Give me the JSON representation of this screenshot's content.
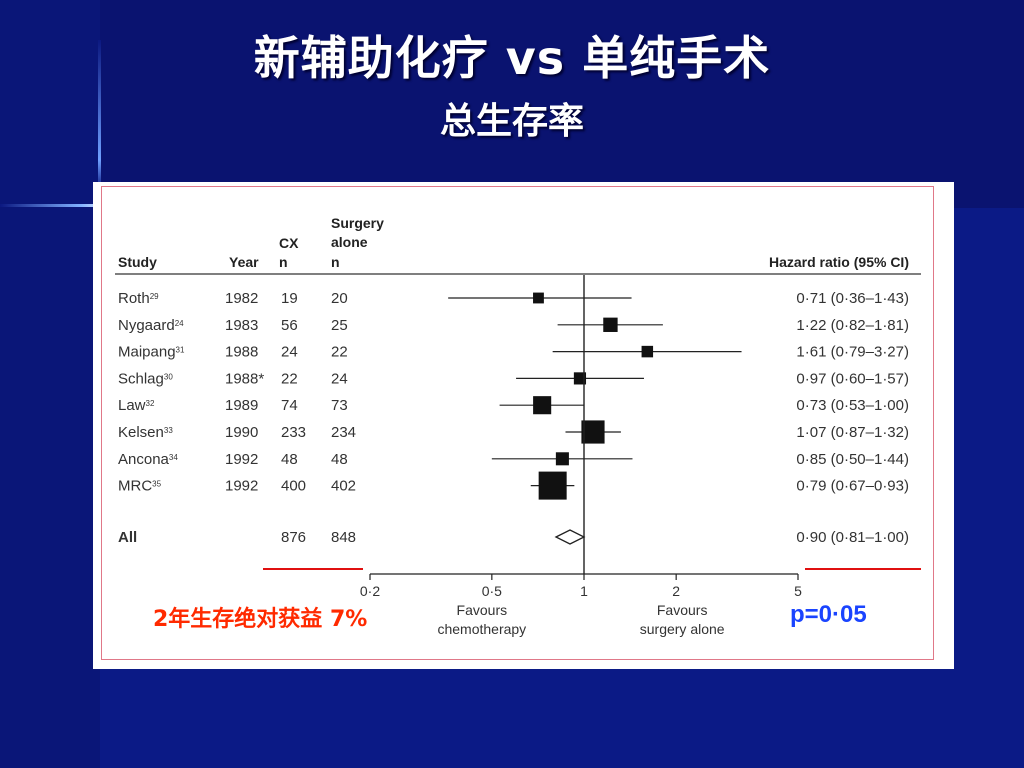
{
  "slide": {
    "title": "新辅助化疗 vs 单纯手术",
    "subtitle": "总生存率",
    "benefit_text": "2年生存绝对获益 7%",
    "p_value_text": "p=0·05"
  },
  "colors": {
    "background": "#0b1880",
    "panel": "#ffffff",
    "panel_border": "#e07888",
    "benefit_text": "#ff2a00",
    "p_value_text": "#1a44ff",
    "red_rule": "#e01010"
  },
  "chart_data": {
    "type": "forest",
    "headers": {
      "study": "Study",
      "year": "Year",
      "cx": "CX",
      "cx_n": "n",
      "surgery_line1": "Surgery",
      "surgery_line2": "alone",
      "surgery_n": "n",
      "hr": "Hazard ratio (95% CI)"
    },
    "studies": [
      {
        "name": "Roth",
        "ref": "29",
        "year": "1982",
        "cx_n": "19",
        "surgery_n": "20",
        "hr": 0.71,
        "lo": 0.36,
        "hi": 1.43,
        "weight": 0.22,
        "label": "0·71 (0·36–1·43)"
      },
      {
        "name": "Nygaard",
        "ref": "24",
        "year": "1983",
        "cx_n": "56",
        "surgery_n": "25",
        "hr": 1.22,
        "lo": 0.82,
        "hi": 1.81,
        "weight": 0.38,
        "label": "1·22 (0·82–1·81)"
      },
      {
        "name": "Maipang",
        "ref": "31",
        "year": "1988",
        "cx_n": "24",
        "surgery_n": "22",
        "hr": 1.61,
        "lo": 0.79,
        "hi": 3.27,
        "weight": 0.25,
        "label": "1·61 (0·79–3·27)"
      },
      {
        "name": "Schlag",
        "ref": "30",
        "year": "1988*",
        "cx_n": "22",
        "surgery_n": "24",
        "hr": 0.97,
        "lo": 0.6,
        "hi": 1.57,
        "weight": 0.28,
        "label": "0·97 (0·60–1·57)"
      },
      {
        "name": "Law",
        "ref": "32",
        "year": "1989",
        "cx_n": "74",
        "surgery_n": "73",
        "hr": 0.73,
        "lo": 0.53,
        "hi": 1.0,
        "weight": 0.55,
        "label": "0·73 (0·53–1·00)"
      },
      {
        "name": "Kelsen",
        "ref": "33",
        "year": "1990",
        "cx_n": "233",
        "surgery_n": "234",
        "hr": 1.07,
        "lo": 0.87,
        "hi": 1.32,
        "weight": 0.78,
        "label": "1·07 (0·87–1·32)"
      },
      {
        "name": "Ancona",
        "ref": "34",
        "year": "1992",
        "cx_n": "48",
        "surgery_n": "48",
        "hr": 0.85,
        "lo": 0.5,
        "hi": 1.44,
        "weight": 0.32,
        "label": "0·85 (0·50–1·44)"
      },
      {
        "name": "MRC",
        "ref": "35",
        "year": "1992",
        "cx_n": "400",
        "surgery_n": "402",
        "hr": 0.79,
        "lo": 0.67,
        "hi": 0.93,
        "weight": 1.0,
        "label": "0·79 (0·67–0·93)"
      }
    ],
    "overall": {
      "name": "All",
      "cx_n": "876",
      "surgery_n": "848",
      "hr": 0.9,
      "lo": 0.81,
      "hi": 1.0,
      "label": "0·90 (0·81–1·00)"
    },
    "x_axis": {
      "scale": "log",
      "range": [
        0.2,
        5
      ],
      "ticks": [
        0.2,
        0.5,
        1,
        2,
        5
      ],
      "tick_labels": [
        "0·2",
        "0·5",
        "1",
        "2",
        "5"
      ],
      "reference": 1
    },
    "favours_left": [
      "Favours",
      "chemotherapy"
    ],
    "favours_right": [
      "Favours",
      "surgery alone"
    ]
  }
}
